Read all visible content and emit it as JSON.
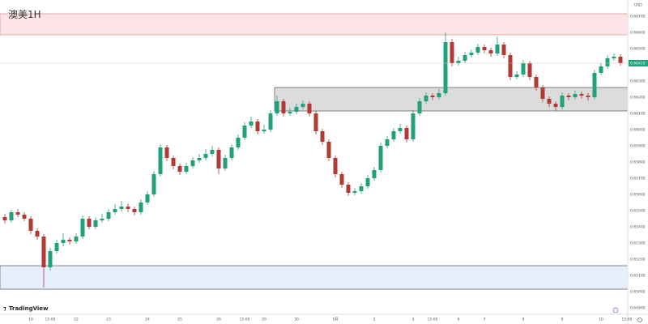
{
  "chart_data": {
    "type": "candlestick",
    "title": "澳美1H",
    "currency": "USD",
    "watermark": "TradingView",
    "last_price_label": "0.66410",
    "up_color": "#22a07a",
    "down_color": "#b23a36",
    "ylim": [
      0.6486,
      0.668
    ],
    "yticks": [
      {
        "value": 0.649,
        "label": "0.64900"
      },
      {
        "value": 0.65,
        "label": "0.65000"
      },
      {
        "value": 0.651,
        "label": "0.65100"
      },
      {
        "value": 0.652,
        "label": "0.65200"
      },
      {
        "value": 0.653,
        "label": "0.65300"
      },
      {
        "value": 0.654,
        "label": "0.65400"
      },
      {
        "value": 0.655,
        "label": "0.65500"
      },
      {
        "value": 0.656,
        "label": "0.65600"
      },
      {
        "value": 0.657,
        "label": "0.65700"
      },
      {
        "value": 0.658,
        "label": "0.65800"
      },
      {
        "value": 0.659,
        "label": "0.65900"
      },
      {
        "value": 0.66,
        "label": "0.66000"
      },
      {
        "value": 0.661,
        "label": "0.66100"
      },
      {
        "value": 0.662,
        "label": "0.66200"
      },
      {
        "value": 0.663,
        "label": "0.66300"
      },
      {
        "value": 0.664,
        "label": "0.66400"
      },
      {
        "value": 0.665,
        "label": "0.66500"
      },
      {
        "value": 0.666,
        "label": "0.66600"
      },
      {
        "value": 0.667,
        "label": "0.66700"
      }
    ],
    "xticks": [
      {
        "value": 4,
        "label": "19"
      },
      {
        "value": 7,
        "label": "15:00"
      },
      {
        "value": 11,
        "label": "22"
      },
      {
        "value": 16,
        "label": "23"
      },
      {
        "value": 22,
        "label": "24"
      },
      {
        "value": 27,
        "label": "25"
      },
      {
        "value": 33,
        "label": "26"
      },
      {
        "value": 37,
        "label": "15:00"
      },
      {
        "value": 40,
        "label": "29"
      },
      {
        "value": 45,
        "label": "30"
      },
      {
        "value": 51,
        "label": "5月"
      },
      {
        "value": 57,
        "label": "2"
      },
      {
        "value": 63,
        "label": "3"
      },
      {
        "value": 66,
        "label": "15:00"
      },
      {
        "value": 70,
        "label": "6"
      },
      {
        "value": 74,
        "label": "7"
      },
      {
        "value": 80,
        "label": "8"
      },
      {
        "value": 86,
        "label": "9"
      },
      {
        "value": 92,
        "label": "10"
      },
      {
        "value": 96,
        "label": "15:00"
      }
    ],
    "zones": [
      {
        "from": 0.66585,
        "to": 0.66715,
        "start": 0,
        "color": "#fde4e6",
        "border": "#d98c8c"
      },
      {
        "from": 0.66115,
        "to": 0.6626,
        "start": 42,
        "color": "#dcdcdc",
        "border": "#555555"
      },
      {
        "from": 0.65015,
        "to": 0.6516,
        "start": 0,
        "color": "#e7eefc",
        "border": "#555555"
      }
    ],
    "open": [
      0.6546,
      0.6544,
      0.6549,
      0.65475,
      0.6545,
      0.65375,
      0.6534,
      0.6515,
      0.6525,
      0.653,
      0.6532,
      0.6531,
      0.6534,
      0.6545,
      0.654,
      0.6544,
      0.6545,
      0.6549,
      0.6551,
      0.65525,
      0.6551,
      0.6549,
      0.6555,
      0.656,
      0.65725,
      0.6589,
      0.65825,
      0.65775,
      0.6574,
      0.65775,
      0.6581,
      0.65825,
      0.6585,
      0.65875,
      0.6576,
      0.65825,
      0.6589,
      0.6595,
      0.66025,
      0.6605,
      0.6599,
      0.66,
      0.661,
      0.66175,
      0.661,
      0.6611,
      0.6614,
      0.6616,
      0.661,
      0.6599,
      0.65925,
      0.65825,
      0.65725,
      0.6566,
      0.6561,
      0.6562,
      0.6565,
      0.657,
      0.6575,
      0.659,
      0.6594,
      0.6599,
      0.6601,
      0.6594,
      0.661,
      0.66175,
      0.6621,
      0.662,
      0.66225,
      0.6654,
      0.6641,
      0.66425,
      0.6646,
      0.66475,
      0.6651,
      0.6649,
      0.6647,
      0.66525,
      0.6646,
      0.66325,
      0.6634,
      0.6641,
      0.66325,
      0.6626,
      0.6619,
      0.6616,
      0.6614,
      0.6621,
      0.662,
      0.6622,
      0.6621,
      0.662,
      0.6635,
      0.6639,
      0.6644,
      0.6645
    ],
    "high": [
      0.6548,
      0.65505,
      0.6551,
      0.6549,
      0.65465,
      0.6539,
      0.65355,
      0.6527,
      0.6532,
      0.6536,
      0.65335,
      0.6536,
      0.6547,
      0.65465,
      0.6546,
      0.6548,
      0.6551,
      0.6554,
      0.6556,
      0.65545,
      0.65525,
      0.6557,
      0.6562,
      0.65745,
      0.6591,
      0.65905,
      0.6584,
      0.6579,
      0.65795,
      0.6583,
      0.6585,
      0.6588,
      0.659,
      0.6589,
      0.65845,
      0.6591,
      0.6597,
      0.66045,
      0.6608,
      0.66065,
      0.6603,
      0.6612,
      0.6621,
      0.6619,
      0.66135,
      0.6616,
      0.6618,
      0.66175,
      0.66115,
      0.66005,
      0.6594,
      0.6584,
      0.6574,
      0.65675,
      0.6564,
      0.6567,
      0.6572,
      0.6577,
      0.6592,
      0.6596,
      0.6601,
      0.66035,
      0.66025,
      0.6612,
      0.66195,
      0.6623,
      0.66225,
      0.6625,
      0.666,
      0.6656,
      0.6645,
      0.6648,
      0.66495,
      0.6653,
      0.66525,
      0.66505,
      0.66575,
      0.6654,
      0.66475,
      0.6636,
      0.6643,
      0.66425,
      0.6634,
      0.66275,
      0.66205,
      0.66175,
      0.6623,
      0.66225,
      0.6624,
      0.66235,
      0.66225,
      0.6637,
      0.6641,
      0.6646,
      0.6647,
      0.66465
    ],
    "low": [
      0.6542,
      0.65425,
      0.6546,
      0.65435,
      0.65355,
      0.6532,
      0.65025,
      0.6513,
      0.65235,
      0.6528,
      0.6529,
      0.65295,
      0.65325,
      0.65385,
      0.65385,
      0.65425,
      0.65435,
      0.65475,
      0.65495,
      0.6549,
      0.6547,
      0.65475,
      0.65535,
      0.65585,
      0.6571,
      0.65805,
      0.65755,
      0.6572,
      0.65725,
      0.6576,
      0.65795,
      0.6581,
      0.65835,
      0.65725,
      0.65745,
      0.6581,
      0.65875,
      0.65935,
      0.6601,
      0.6597,
      0.65975,
      0.65985,
      0.66085,
      0.6608,
      0.66085,
      0.66095,
      0.66125,
      0.6608,
      0.6597,
      0.65905,
      0.65805,
      0.65705,
      0.6564,
      0.6559,
      0.65595,
      0.65605,
      0.65635,
      0.65685,
      0.65735,
      0.65885,
      0.65925,
      0.65975,
      0.6592,
      0.65925,
      0.66085,
      0.6616,
      0.6618,
      0.66185,
      0.6621,
      0.6639,
      0.66395,
      0.6641,
      0.66445,
      0.6646,
      0.6647,
      0.6645,
      0.66455,
      0.6644,
      0.66305,
      0.6631,
      0.66325,
      0.66305,
      0.6624,
      0.6617,
      0.6614,
      0.66115,
      0.66125,
      0.6618,
      0.66185,
      0.6619,
      0.6618,
      0.66185,
      0.66335,
      0.66375,
      0.66425,
      0.66395
    ],
    "close": [
      0.6544,
      0.6549,
      0.65475,
      0.6545,
      0.65375,
      0.6534,
      0.6515,
      0.6525,
      0.653,
      0.6532,
      0.6531,
      0.6534,
      0.6545,
      0.654,
      0.6544,
      0.6545,
      0.6549,
      0.6551,
      0.65525,
      0.6551,
      0.6549,
      0.6555,
      0.656,
      0.65725,
      0.6589,
      0.65825,
      0.65775,
      0.6574,
      0.65775,
      0.6581,
      0.65825,
      0.6585,
      0.65875,
      0.6576,
      0.65825,
      0.6589,
      0.6595,
      0.66025,
      0.6605,
      0.6599,
      0.66,
      0.661,
      0.66175,
      0.661,
      0.6611,
      0.6614,
      0.6616,
      0.661,
      0.6599,
      0.65925,
      0.65825,
      0.65725,
      0.6566,
      0.6561,
      0.6562,
      0.6565,
      0.657,
      0.6575,
      0.659,
      0.6594,
      0.6599,
      0.6601,
      0.6594,
      0.661,
      0.66175,
      0.6621,
      0.662,
      0.66225,
      0.6654,
      0.6641,
      0.66425,
      0.6646,
      0.66475,
      0.6651,
      0.6649,
      0.6647,
      0.66525,
      0.6646,
      0.66325,
      0.6634,
      0.6641,
      0.66325,
      0.6626,
      0.6619,
      0.6616,
      0.6614,
      0.6621,
      0.662,
      0.6622,
      0.6621,
      0.662,
      0.6635,
      0.6639,
      0.6644,
      0.6645,
      0.6641
    ]
  }
}
